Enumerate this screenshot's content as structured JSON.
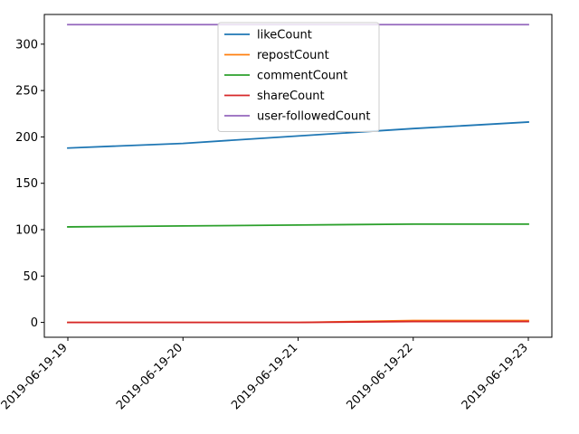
{
  "chart_data": {
    "type": "line",
    "title": "",
    "xlabel": "",
    "ylabel": "",
    "categories": [
      "2019-06-19-19",
      "2019-06-19-20",
      "2019-06-19-21",
      "2019-06-19-22",
      "2019-06-19-23"
    ],
    "ylim": [
      -16,
      332
    ],
    "yticks": [
      0,
      50,
      100,
      150,
      200,
      250,
      300
    ],
    "grid": false,
    "legend_position": "top-center",
    "series": [
      {
        "name": "likeCount",
        "color": "#1f77b4",
        "values": [
          188,
          193,
          201,
          209,
          216
        ]
      },
      {
        "name": "repostCount",
        "color": "#ff7f0e",
        "values": [
          0,
          0,
          0,
          2,
          2
        ]
      },
      {
        "name": "commentCount",
        "color": "#2ca02c",
        "values": [
          103,
          104,
          105,
          106,
          106
        ]
      },
      {
        "name": "shareCount",
        "color": "#d62728",
        "values": [
          0,
          0,
          0,
          1,
          1
        ]
      },
      {
        "name": "user-followedCount",
        "color": "#9467bd",
        "values": [
          321,
          321,
          321,
          321,
          321
        ]
      }
    ]
  }
}
